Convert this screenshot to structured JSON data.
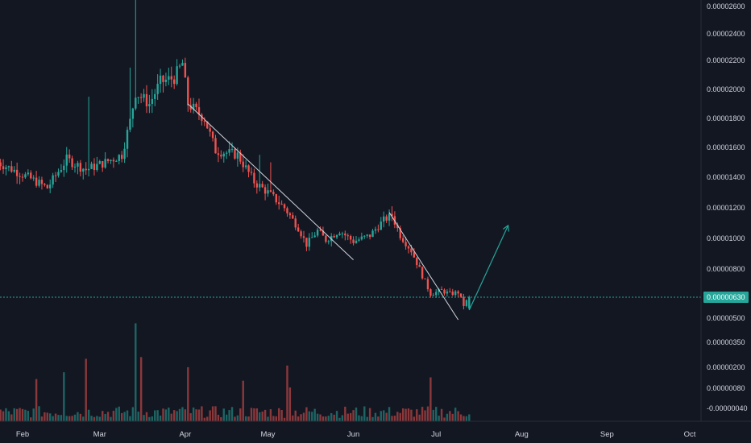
{
  "chart_data": {
    "type": "candlestick",
    "colors": {
      "background": "#131722",
      "up": "#26a69a",
      "down": "#ef5350",
      "volume_up": "#26a69a",
      "volume_down": "#ef5350",
      "axis_text": "#d1d4dc",
      "drawing_line": "#d1d4dc",
      "arrow": "#26a69a",
      "current_price_line": "#26a69a"
    },
    "y_tick_labels": [
      "0.00002600",
      "0.00002400",
      "0.00002200",
      "0.00002000",
      "0.00001800",
      "0.00001600",
      "0.00001400",
      "0.00001200",
      "0.00001000",
      "0.00000800",
      "0.00000630",
      "0.00000500",
      "0.00000350",
      "0.00000200",
      "0.00000080",
      "-0.00000040"
    ],
    "y_ticks": [
      {
        "label": "0.00002600",
        "value": 2.6e-05
      },
      {
        "label": "0.00002400",
        "value": 2.4e-05
      },
      {
        "label": "0.00002200",
        "value": 2.2e-05
      },
      {
        "label": "0.00002000",
        "value": 2e-05
      },
      {
        "label": "0.00001800",
        "value": 1.8e-05
      },
      {
        "label": "0.00001600",
        "value": 1.6e-05
      },
      {
        "label": "0.00001400",
        "value": 1.4e-05
      },
      {
        "label": "0.00001200",
        "value": 1.2e-05
      },
      {
        "label": "0.00001000",
        "value": 1e-05
      },
      {
        "label": "0.00000800",
        "value": 8e-06
      },
      {
        "label": "0.00000500",
        "value": 5e-06
      },
      {
        "label": "0.00000350",
        "value": 3.5e-06
      },
      {
        "label": "0.00000200",
        "value": 2e-06
      },
      {
        "label": "0.00000080",
        "value": 8e-07
      },
      {
        "label": "-0.00000040",
        "value": -4e-07
      }
    ],
    "x_tick_labels": [
      "Feb",
      "Mar",
      "Apr",
      "May",
      "Jun",
      "Jul",
      "Aug",
      "Sep",
      "Oct"
    ],
    "x_ticks": [
      {
        "label": "Feb",
        "date": "2021-02-01"
      },
      {
        "label": "Mar",
        "date": "2021-03-01"
      },
      {
        "label": "Apr",
        "date": "2021-04-01"
      },
      {
        "label": "May",
        "date": "2021-05-01"
      },
      {
        "label": "Jun",
        "date": "2021-06-01"
      },
      {
        "label": "Jul",
        "date": "2021-07-01"
      },
      {
        "label": "Aug",
        "date": "2021-08-01"
      },
      {
        "label": "Sep",
        "date": "2021-09-01"
      },
      {
        "label": "Oct",
        "date": "2021-10-01"
      }
    ],
    "current_price": {
      "label": "0.00000630",
      "value": 6.3e-06
    },
    "price_keypoints": [
      {
        "date": "2021-01-23",
        "close": 1.5e-05
      },
      {
        "date": "2021-02-03",
        "close": 1.4e-05
      },
      {
        "date": "2021-02-10",
        "close": 1.33e-05
      },
      {
        "date": "2021-02-17",
        "close": 1.52e-05
      },
      {
        "date": "2021-02-24",
        "close": 1.45e-05
      },
      {
        "date": "2021-03-03",
        "close": 1.5e-05
      },
      {
        "date": "2021-03-09",
        "close": 1.55e-05
      },
      {
        "date": "2021-03-12",
        "close": 1.78e-05
      },
      {
        "date": "2021-03-14",
        "close": 1.98e-05
      },
      {
        "date": "2021-03-19",
        "close": 1.9e-05
      },
      {
        "date": "2021-03-23",
        "close": 2.05e-05
      },
      {
        "date": "2021-03-28",
        "close": 2.08e-05
      },
      {
        "date": "2021-03-31",
        "close": 2.18e-05
      },
      {
        "date": "2021-04-02",
        "close": 1.9e-05
      },
      {
        "date": "2021-04-08",
        "close": 1.8e-05
      },
      {
        "date": "2021-04-12",
        "close": 1.58e-05
      },
      {
        "date": "2021-04-20",
        "close": 1.55e-05
      },
      {
        "date": "2021-04-26",
        "close": 1.37e-05
      },
      {
        "date": "2021-05-01",
        "close": 1.3e-05
      },
      {
        "date": "2021-05-07",
        "close": 1.2e-05
      },
      {
        "date": "2021-05-12",
        "close": 1.07e-05
      },
      {
        "date": "2021-05-15",
        "close": 9.6e-06
      },
      {
        "date": "2021-05-19",
        "close": 1.05e-05
      },
      {
        "date": "2021-05-22",
        "close": 9.9e-06
      },
      {
        "date": "2021-05-27",
        "close": 1.05e-05
      },
      {
        "date": "2021-06-01",
        "close": 9.8e-06
      },
      {
        "date": "2021-06-07",
        "close": 1.02e-05
      },
      {
        "date": "2021-06-12",
        "close": 1.12e-05
      },
      {
        "date": "2021-06-15",
        "close": 1.15e-05
      },
      {
        "date": "2021-06-18",
        "close": 1.02e-05
      },
      {
        "date": "2021-06-22",
        "close": 9.2e-06
      },
      {
        "date": "2021-06-26",
        "close": 7.6e-06
      },
      {
        "date": "2021-06-29",
        "close": 6.5e-06
      },
      {
        "date": "2021-07-03",
        "close": 6.7e-06
      },
      {
        "date": "2021-07-06",
        "close": 6.5e-06
      },
      {
        "date": "2021-07-09",
        "close": 6.6e-06
      },
      {
        "date": "2021-07-11",
        "close": 5.8e-06
      },
      {
        "date": "2021-07-13",
        "close": 6.3e-06
      }
    ],
    "volume_spikes": [
      {
        "date": "2021-02-06",
        "value": 0.25
      },
      {
        "date": "2021-02-16",
        "value": 0.29
      },
      {
        "date": "2021-02-24",
        "value": 0.37
      },
      {
        "date": "2021-03-14",
        "value": 0.58
      },
      {
        "date": "2021-03-16",
        "value": 0.38
      },
      {
        "date": "2021-04-02",
        "value": 0.32
      },
      {
        "date": "2021-04-22",
        "value": 0.24
      },
      {
        "date": "2021-05-08",
        "value": 0.33
      },
      {
        "date": "2021-05-09",
        "value": 0.2
      },
      {
        "date": "2021-06-29",
        "value": 0.26
      }
    ],
    "drawings": [
      {
        "kind": "trend_line",
        "from": {
          "date": "2021-04-02",
          "price": 1.9e-05
        },
        "to": {
          "date": "2021-06-01",
          "price": 8.6e-06
        }
      },
      {
        "kind": "trend_line",
        "from": {
          "date": "2021-06-14",
          "price": 1.17e-05
        },
        "to": {
          "date": "2021-07-09",
          "price": 4.9e-06
        }
      },
      {
        "kind": "arrow",
        "from": {
          "date": "2021-07-13",
          "price": 5.5e-06
        },
        "to": {
          "date": "2021-07-27",
          "price": 1.08e-05
        }
      }
    ]
  }
}
